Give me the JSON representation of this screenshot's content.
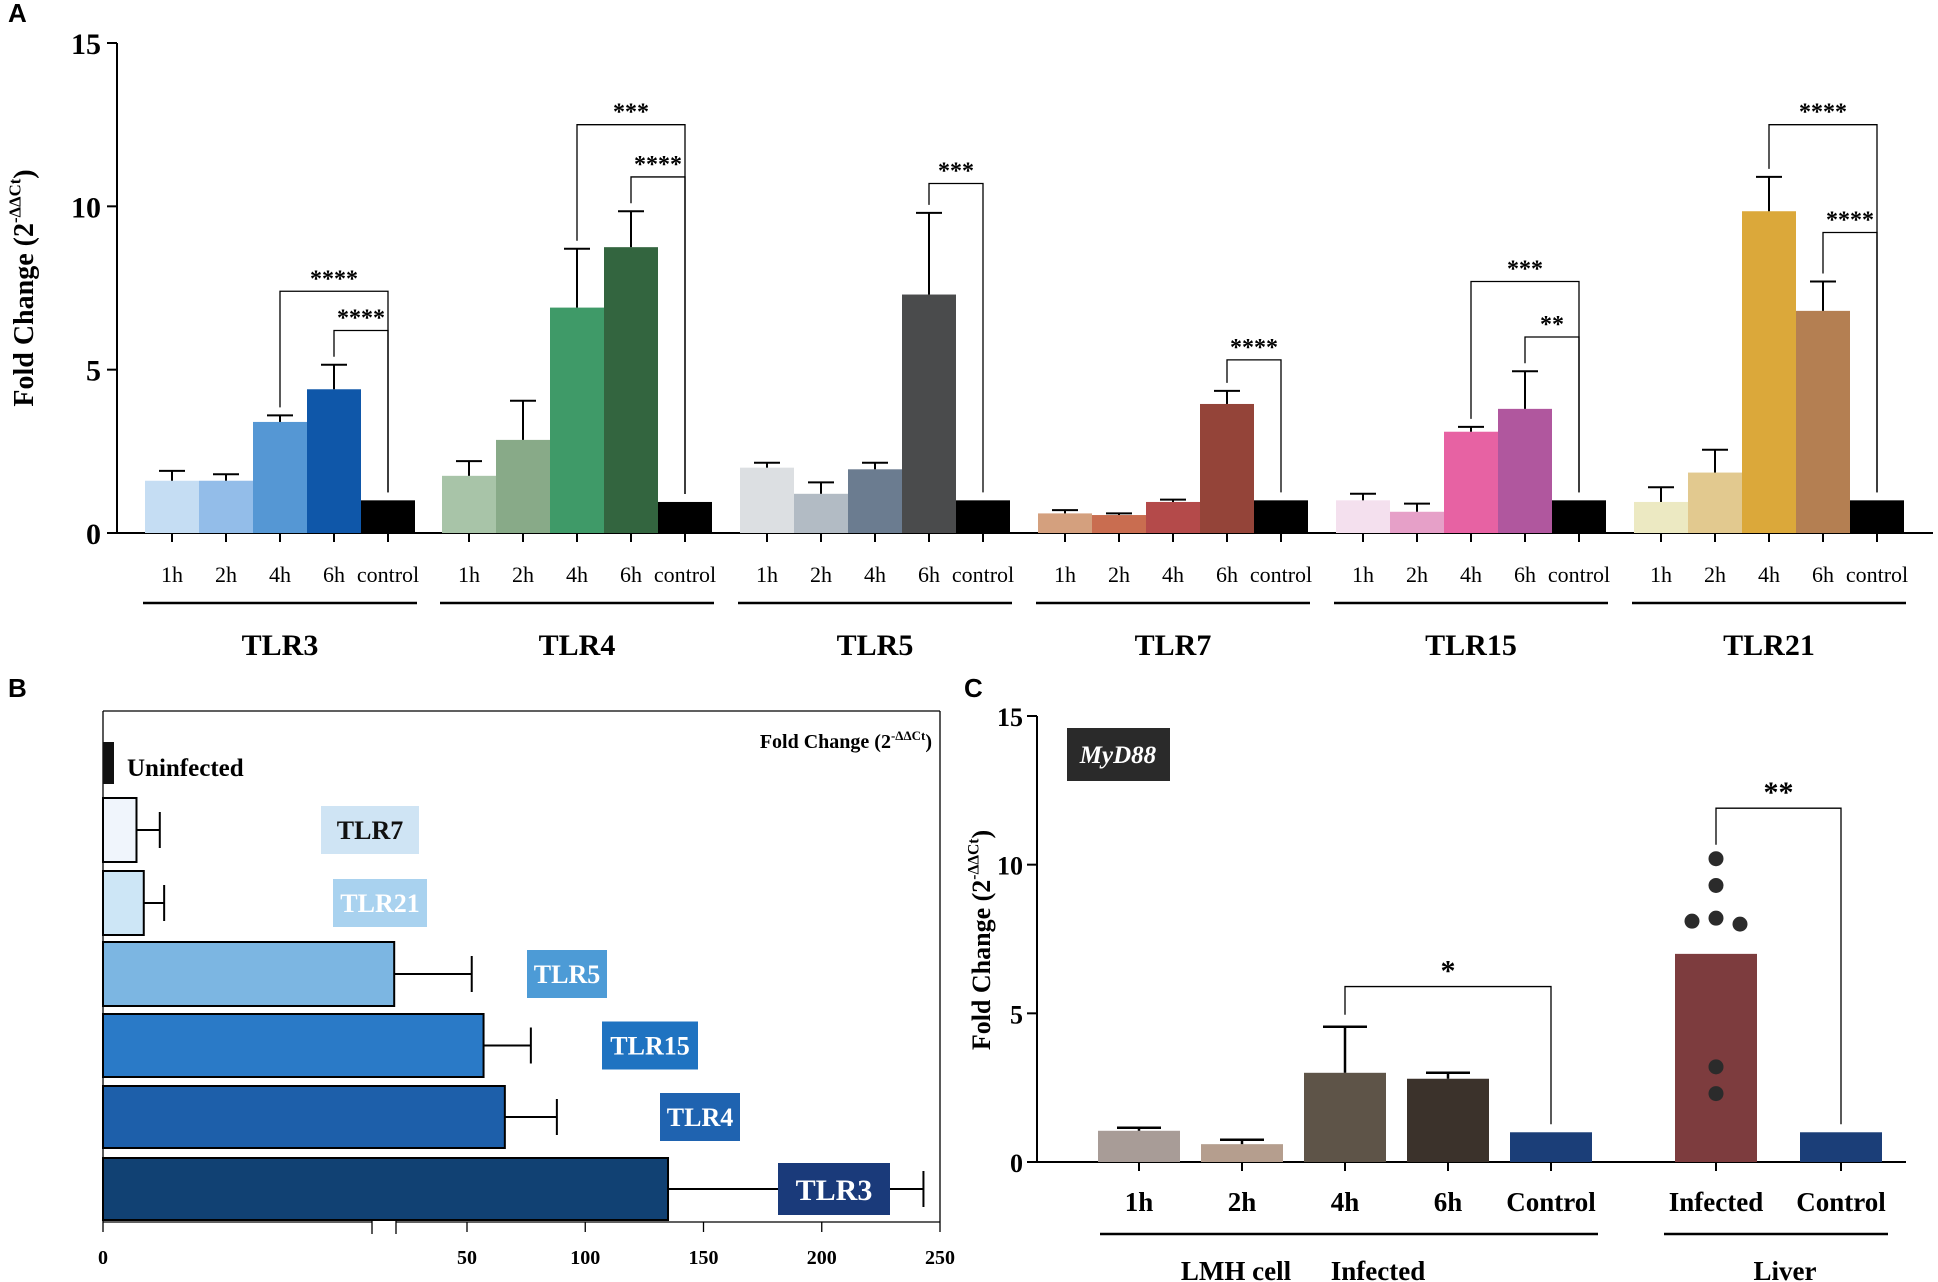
{
  "panels": {
    "a": "A",
    "b": "B",
    "c": "C"
  },
  "chart_data": [
    {
      "panel": "A",
      "type": "bar",
      "ylabel": "Fold Change (2",
      "ylabel_sup": "-ΔΔCt",
      "ylabel_close": ")",
      "ylim": [
        0,
        15
      ],
      "yticks": [
        "0",
        "5",
        "10",
        "15"
      ],
      "ytick_values": [
        0,
        5,
        10,
        15
      ],
      "categories": [
        "1h",
        "2h",
        "4h",
        "6h",
        "control"
      ],
      "groups": [
        {
          "name": "TLR3",
          "values": [
            1.6,
            1.6,
            3.4,
            4.4,
            1.0
          ],
          "errors": [
            0.3,
            0.2,
            0.2,
            0.75,
            0
          ],
          "colors": [
            "#c5ddf3",
            "#93bde9",
            "#5597d4",
            "#0f57a9",
            "#000000"
          ],
          "sig": [
            {
              "from": 2,
              "to": 4,
              "label": "****",
              "y": 7.4
            },
            {
              "from": 3,
              "to": 4,
              "label": "****",
              "y": 6.2
            }
          ]
        },
        {
          "name": "TLR4",
          "values": [
            1.75,
            2.85,
            6.9,
            8.75,
            0.95
          ],
          "errors": [
            0.45,
            1.2,
            1.8,
            1.1,
            0
          ],
          "colors": [
            "#a8c4a8",
            "#88aa88",
            "#3f9a68",
            "#33653f",
            "#000000"
          ],
          "sig": [
            {
              "from": 2,
              "to": 4,
              "label": "***",
              "y": 12.5
            },
            {
              "from": 3,
              "to": 4,
              "label": "****",
              "y": 10.9
            }
          ]
        },
        {
          "name": "TLR5",
          "values": [
            2.0,
            1.2,
            1.95,
            7.3,
            1.0
          ],
          "errors": [
            0.15,
            0.35,
            0.2,
            2.5,
            0
          ],
          "colors": [
            "#dcdfe2",
            "#b2bbc4",
            "#6b7c90",
            "#4a4b4c",
            "#000000"
          ],
          "sig": [
            {
              "from": 3,
              "to": 4,
              "label": "***",
              "y": 10.7
            }
          ]
        },
        {
          "name": "TLR7",
          "values": [
            0.6,
            0.55,
            0.95,
            3.95,
            1.0
          ],
          "errors": [
            0.1,
            0.05,
            0.07,
            0.4,
            0
          ],
          "colors": [
            "#d4a07e",
            "#c96d50",
            "#b44a4a",
            "#944439",
            "#000000"
          ],
          "sig": [
            {
              "from": 3,
              "to": 4,
              "label": "****",
              "y": 5.3
            }
          ]
        },
        {
          "name": "TLR15",
          "values": [
            1.0,
            0.65,
            3.1,
            3.8,
            1.0
          ],
          "errors": [
            0.2,
            0.25,
            0.15,
            1.15,
            0
          ],
          "colors": [
            "#f4e0ee",
            "#e6a0c8",
            "#e762a3",
            "#b0579e",
            "#000000"
          ],
          "sig": [
            {
              "from": 2,
              "to": 4,
              "label": "***",
              "y": 7.7
            },
            {
              "from": 3,
              "to": 4,
              "label": "**",
              "y": 6.0
            }
          ]
        },
        {
          "name": "TLR21",
          "values": [
            0.95,
            1.85,
            9.85,
            6.8,
            1.0
          ],
          "errors": [
            0.45,
            0.7,
            1.05,
            0.9,
            0
          ],
          "colors": [
            "#ece9c2",
            "#e2c98f",
            "#dba83a",
            "#b47f52",
            "#000000"
          ],
          "sig": [
            {
              "from": 2,
              "to": 4,
              "label": "****",
              "y": 12.5
            },
            {
              "from": 3,
              "to": 4,
              "label": "****",
              "y": 9.2
            }
          ]
        }
      ]
    },
    {
      "panel": "B",
      "type": "bar",
      "orientation": "horizontal",
      "annotation": "Fold Change (2",
      "annotation_sup": "-ΔΔCt",
      "annotation_close": ")",
      "xticks": [
        "0",
        "50",
        "100",
        "150",
        "200",
        "250"
      ],
      "xtick_values": [
        0,
        50,
        100,
        150,
        200,
        250
      ],
      "broken_axis": true,
      "first_label": "Uninfected",
      "series": [
        {
          "name": "Uninfected",
          "value": 1,
          "error": 0,
          "fill": "#111111",
          "label_bg": "none",
          "label_color": "#111111"
        },
        {
          "name": "TLR7",
          "value": 4.6,
          "error": 3.2,
          "fill": "#f0f5fc",
          "label_bg": "#cfe4f4",
          "label_color": "#111111"
        },
        {
          "name": "TLR21",
          "value": 5.6,
          "error": 2.8,
          "fill": "#cde6f6",
          "label_bg": "#a9d2ef",
          "label_color": "#ffffff"
        },
        {
          "name": "TLR5",
          "value": 40,
          "error": 12,
          "fill": "#7cb6e2",
          "label_bg": "#4d9bd6",
          "label_color": "#ffffff"
        },
        {
          "name": "TLR15",
          "value": 57,
          "error": 20,
          "fill": "#2a7ac7",
          "label_bg": "#1f73c1",
          "label_color": "#ffffff"
        },
        {
          "name": "TLR4",
          "value": 66,
          "error": 22,
          "fill": "#1d5faa",
          "label_bg": "#1f63b0",
          "label_color": "#ffffff"
        },
        {
          "name": "TLR3",
          "value": 135,
          "error": 108,
          "fill": "#114173",
          "label_bg": "#1a3a7a",
          "label_color": "#ffffff"
        }
      ]
    },
    {
      "panel": "C",
      "type": "bar",
      "title_box": "MyD88",
      "ylabel": "Fold Change (2",
      "ylabel_sup": "-ΔΔCt",
      "ylabel_close": ")",
      "ylim": [
        0,
        15
      ],
      "yticks": [
        "0",
        "5",
        "10",
        "15"
      ],
      "ytick_values": [
        0,
        5,
        10,
        15
      ],
      "categories": [
        "1h",
        "2h",
        "4h",
        "6h",
        "Control",
        "Infected",
        "Control"
      ],
      "values": [
        1.05,
        0.6,
        3.0,
        2.8,
        1.0,
        7.0,
        1.0
      ],
      "errors": [
        0.1,
        0.15,
        1.55,
        0.2,
        0,
        0,
        0
      ],
      "colors": [
        "#a89c97",
        "#b59e8e",
        "#5e5448",
        "#3b322b",
        "#1b3e78",
        "#7d3c3e",
        "#1b3e78"
      ],
      "points_infected": [
        10.2,
        9.3,
        8.1,
        8.2,
        8.0,
        3.2,
        2.3
      ],
      "group_labels": [
        "LMH cell",
        "Infected",
        "Liver"
      ],
      "sig": [
        {
          "from": 2,
          "to": 4,
          "label": "*",
          "y": 5.9
        },
        {
          "from": 5,
          "to": 6,
          "label": "**",
          "y": 11.9
        }
      ]
    }
  ]
}
